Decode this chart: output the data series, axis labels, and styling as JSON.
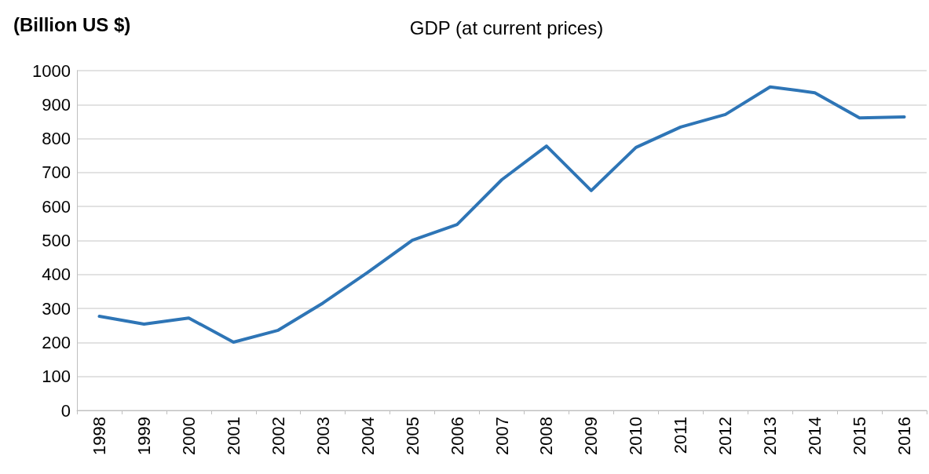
{
  "chart_data": {
    "type": "line",
    "title": "GDP (at current prices)",
    "ylabel": "(Billion US $)",
    "categories": [
      "1998",
      "1999",
      "2000",
      "2001",
      "2002",
      "2003",
      "2004",
      "2005",
      "2006",
      "2007",
      "2008",
      "2009",
      "2010",
      "2011",
      "2012",
      "2013",
      "2014",
      "2015",
      "2016"
    ],
    "series": [
      {
        "color": "#2e75b6",
        "values": [
          277,
          254,
          272,
          201,
          236,
          316,
          406,
          501,
          547,
          679,
          778,
          647,
          774,
          834,
          871,
          952,
          935,
          861,
          864
        ]
      }
    ],
    "ylim": [
      0,
      1000
    ],
    "yticks": [
      0,
      100,
      200,
      300,
      400,
      500,
      600,
      700,
      800,
      900,
      1000
    ],
    "grid": "y",
    "marker": "none",
    "line_style": "solid"
  }
}
